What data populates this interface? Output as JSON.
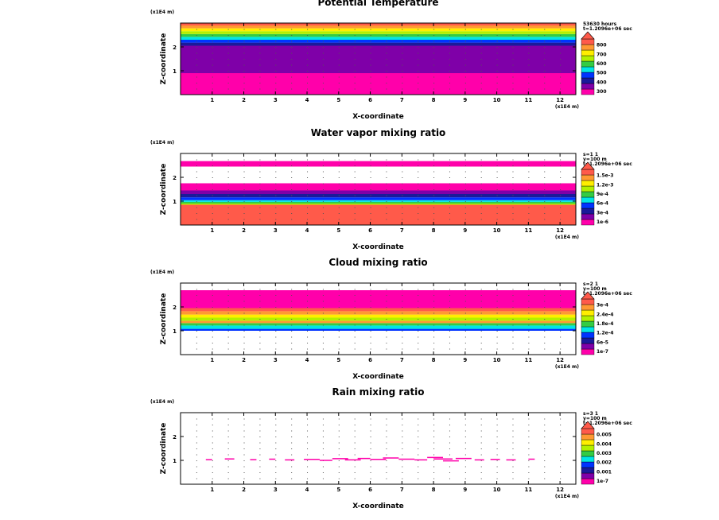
{
  "colors": {
    "magenta": "#ff00aa",
    "purple": "#7f00a8",
    "navy": "#1a1a9a",
    "blue": "#0033ff",
    "cyan": "#00e5e5",
    "green": "#33cc44",
    "lime": "#b3f000",
    "yellow": "#ffee00",
    "orange": "#ff9933",
    "salmon": "#ff5a4a"
  },
  "chart_data": [
    {
      "type": "heatmap",
      "title": "Potential Temperature",
      "xlabel": "X-coordinate",
      "ylabel": "Z-coordinate",
      "x_unit": "(x1E4 m)",
      "y_unit": "(x1E4 m)",
      "xlim": [
        0,
        12.5
      ],
      "ylim": [
        0,
        3
      ],
      "xticks": [
        "1",
        "2",
        "3",
        "4",
        "5",
        "6",
        "7",
        "8",
        "9",
        "10",
        "11",
        "12"
      ],
      "yticks": [
        "1",
        "2"
      ],
      "info": [
        "53630 hours",
        "t=1.2096e+06 sec"
      ],
      "legend_labels": [
        "300",
        "400",
        "500",
        "600",
        "700",
        "800"
      ],
      "layers": [
        {
          "z0": 0.0,
          "z1": 0.9,
          "color": "magenta"
        },
        {
          "z0": 0.9,
          "z1": 2.05,
          "color": "purple"
        },
        {
          "z0": 2.05,
          "z1": 2.18,
          "color": "navy"
        },
        {
          "z0": 2.18,
          "z1": 2.3,
          "color": "blue"
        },
        {
          "z0": 2.3,
          "z1": 2.42,
          "color": "cyan"
        },
        {
          "z0": 2.42,
          "z1": 2.54,
          "color": "green"
        },
        {
          "z0": 2.54,
          "z1": 2.66,
          "color": "lime"
        },
        {
          "z0": 2.66,
          "z1": 2.78,
          "color": "yellow"
        },
        {
          "z0": 2.78,
          "z1": 2.9,
          "color": "orange"
        },
        {
          "z0": 2.9,
          "z1": 3.0,
          "color": "salmon"
        }
      ],
      "dashes": []
    },
    {
      "type": "heatmap",
      "title": "Water vapor mixing ratio",
      "xlabel": "X-coordinate",
      "ylabel": "Z-coordinate",
      "x_unit": "(x1E4 m)",
      "y_unit": "(x1E4 m)",
      "xlim": [
        0,
        12.5
      ],
      "ylim": [
        0,
        3
      ],
      "xticks": [
        "1",
        "2",
        "3",
        "4",
        "5",
        "6",
        "7",
        "8",
        "9",
        "10",
        "11",
        "12"
      ],
      "yticks": [
        "1",
        "2"
      ],
      "info": [
        "s=1 1",
        "y=100 m",
        "t=1.2096e+06 sec"
      ],
      "legend_labels": [
        "1e-6",
        "3e-4",
        "6e-4",
        "9e-4",
        "1.2e-3",
        "1.5e-3"
      ],
      "layers": [
        {
          "z0": 0.0,
          "z1": 0.85,
          "color": "salmon"
        },
        {
          "z0": 0.85,
          "z1": 0.9,
          "color": "lime"
        },
        {
          "z0": 0.9,
          "z1": 0.97,
          "color": "green"
        },
        {
          "z0": 0.97,
          "z1": 1.04,
          "color": "cyan"
        },
        {
          "z0": 1.04,
          "z1": 1.16,
          "color": "blue"
        },
        {
          "z0": 1.16,
          "z1": 1.3,
          "color": "navy"
        },
        {
          "z0": 1.3,
          "z1": 1.45,
          "color": "purple"
        },
        {
          "z0": 1.45,
          "z1": 1.75,
          "color": "magenta"
        },
        {
          "z0": 2.45,
          "z1": 2.68,
          "color": "magenta"
        }
      ],
      "dashes": []
    },
    {
      "type": "heatmap",
      "title": "Cloud mixing ratio",
      "xlabel": "X-coordinate",
      "ylabel": "Z-coordinate",
      "x_unit": "(x1E4 m)",
      "y_unit": "(x1E4 m)",
      "xlim": [
        0,
        12.5
      ],
      "ylim": [
        0,
        3
      ],
      "xticks": [
        "1",
        "2",
        "3",
        "4",
        "5",
        "6",
        "7",
        "8",
        "9",
        "10",
        "11",
        "12"
      ],
      "yticks": [
        "1",
        "2"
      ],
      "info": [
        "s=2 1",
        "y=100 m",
        "t=1.2096e+06 sec"
      ],
      "legend_labels": [
        "1e-7",
        "6e-5",
        "1.2e-4",
        "1.8e-4",
        "2.4e-4",
        "3e-4"
      ],
      "layers": [
        {
          "z0": 1.0,
          "z1": 1.08,
          "color": "blue"
        },
        {
          "z0": 1.08,
          "z1": 1.22,
          "color": "cyan"
        },
        {
          "z0": 1.22,
          "z1": 1.32,
          "color": "green"
        },
        {
          "z0": 1.32,
          "z1": 1.42,
          "color": "orange"
        },
        {
          "z0": 1.42,
          "z1": 1.55,
          "color": "lime"
        },
        {
          "z0": 1.55,
          "z1": 1.68,
          "color": "yellow"
        },
        {
          "z0": 1.68,
          "z1": 1.82,
          "color": "orange"
        },
        {
          "z0": 1.82,
          "z1": 1.95,
          "color": "salmon"
        },
        {
          "z0": 1.95,
          "z1": 2.7,
          "color": "magenta"
        }
      ],
      "dashes": []
    },
    {
      "type": "heatmap",
      "title": "Rain mixing ratio",
      "xlabel": "X-coordinate",
      "ylabel": "Z-coordinate",
      "x_unit": "(x1E4 m)",
      "y_unit": "(x1E4 m)",
      "xlim": [
        0,
        12.5
      ],
      "ylim": [
        0,
        3
      ],
      "xticks": [
        "1",
        "2",
        "3",
        "4",
        "5",
        "6",
        "7",
        "8",
        "9",
        "10",
        "11",
        "12"
      ],
      "yticks": [
        "1",
        "2"
      ],
      "info": [
        "s=3 1",
        "y=100 m",
        "t=1.2096e+06 sec"
      ],
      "legend_labels": [
        "1e-7",
        "0.001",
        "0.002",
        "0.003",
        "0.004",
        "0.005"
      ],
      "layers": [],
      "dashes": [
        {
          "x0": 0.8,
          "x1": 1.0,
          "z": 1.03
        },
        {
          "x0": 1.4,
          "x1": 1.7,
          "z": 1.06
        },
        {
          "x0": 2.2,
          "x1": 2.4,
          "z": 1.03
        },
        {
          "x0": 2.8,
          "x1": 3.0,
          "z": 1.05
        },
        {
          "x0": 3.3,
          "x1": 3.6,
          "z": 1.02
        },
        {
          "x0": 3.9,
          "x1": 4.4,
          "z": 1.04
        },
        {
          "x0": 4.4,
          "x1": 4.8,
          "z": 1.0
        },
        {
          "x0": 4.8,
          "x1": 5.3,
          "z": 1.07
        },
        {
          "x0": 5.2,
          "x1": 5.7,
          "z": 1.02
        },
        {
          "x0": 5.6,
          "x1": 6.0,
          "z": 1.08
        },
        {
          "x0": 6.0,
          "x1": 6.5,
          "z": 1.04
        },
        {
          "x0": 6.4,
          "x1": 6.9,
          "z": 1.1
        },
        {
          "x0": 6.9,
          "x1": 7.4,
          "z": 1.05
        },
        {
          "x0": 7.4,
          "x1": 7.8,
          "z": 1.02
        },
        {
          "x0": 7.8,
          "x1": 8.3,
          "z": 1.12
        },
        {
          "x0": 8.0,
          "x1": 8.6,
          "z": 1.06
        },
        {
          "x0": 8.3,
          "x1": 8.8,
          "z": 0.98
        },
        {
          "x0": 8.7,
          "x1": 9.2,
          "z": 1.08
        },
        {
          "x0": 9.3,
          "x1": 9.6,
          "z": 1.02
        },
        {
          "x0": 9.8,
          "x1": 10.1,
          "z": 1.04
        },
        {
          "x0": 10.3,
          "x1": 10.6,
          "z": 1.02
        },
        {
          "x0": 11.0,
          "x1": 11.2,
          "z": 1.05
        }
      ]
    }
  ]
}
